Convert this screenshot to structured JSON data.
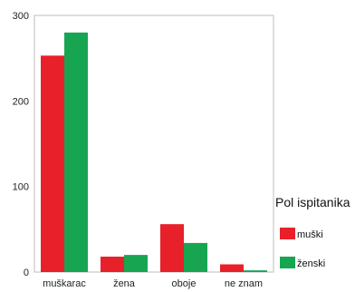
{
  "chart_data": {
    "type": "bar",
    "categories": [
      "muškarac",
      "žena",
      "oboje",
      "ne znam"
    ],
    "series": [
      {
        "name": "muški",
        "color": "#e8202a",
        "values": [
          253,
          18,
          56,
          9
        ]
      },
      {
        "name": "ženski",
        "color": "#17a552",
        "values": [
          280,
          20,
          34,
          2
        ]
      }
    ],
    "ylim": [
      0,
      300
    ],
    "yticks": [
      0,
      100,
      200,
      300
    ],
    "grid": false,
    "legend": {
      "title": "Pol ispitanika",
      "placement": "right"
    },
    "title": "",
    "xlabel": "",
    "ylabel": ""
  }
}
